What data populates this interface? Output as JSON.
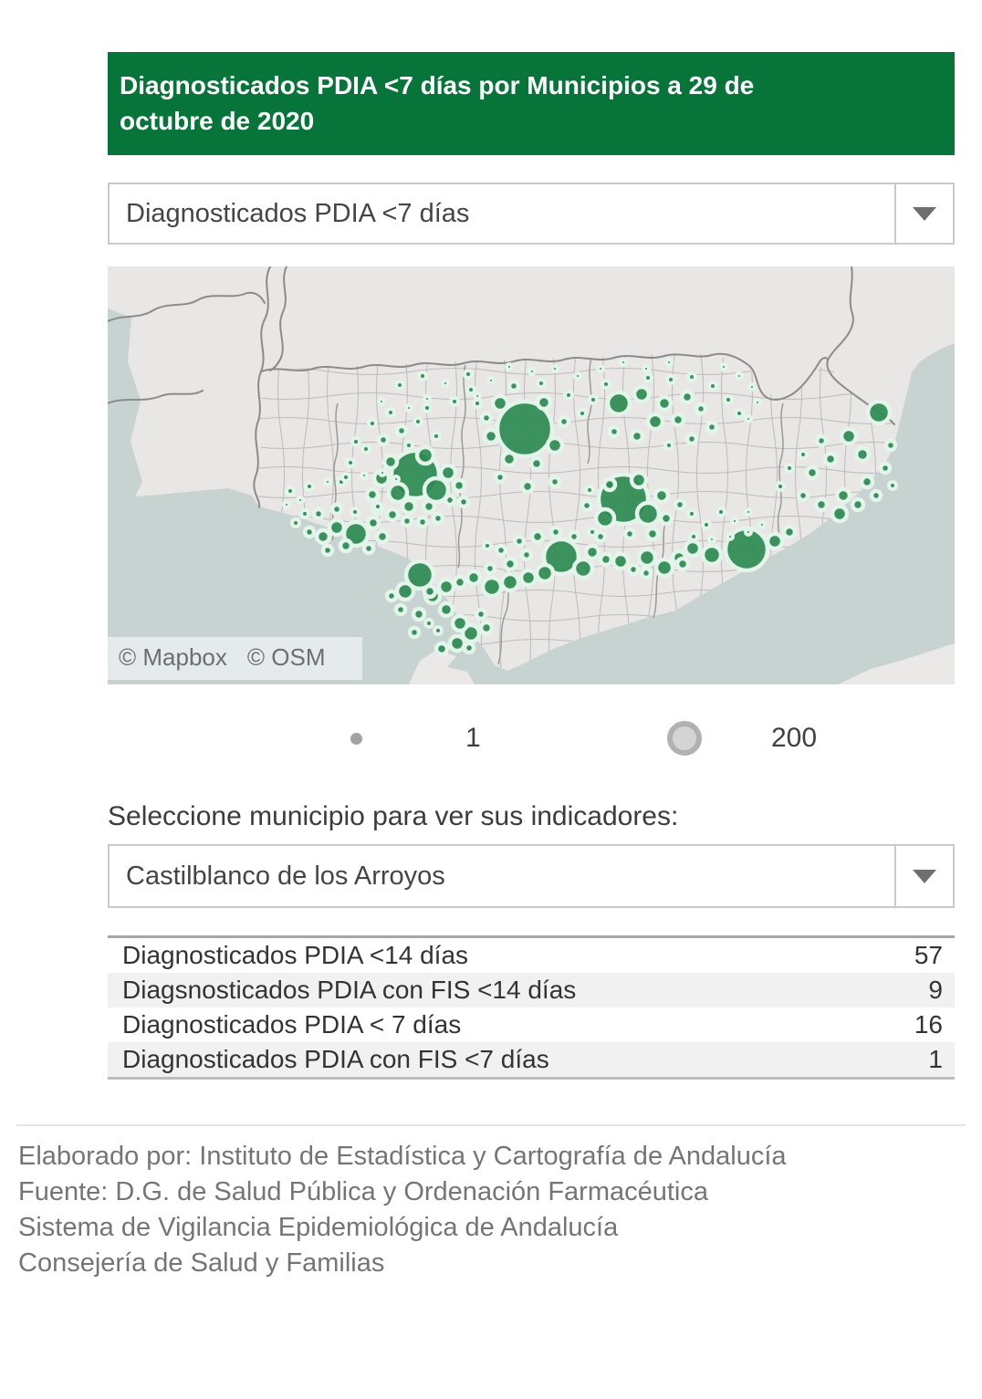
{
  "header": {
    "title": "Diagnosticados PDIA <7 días por Municipios a 29 de octubre de 2020",
    "bg_color": "#077439"
  },
  "indicator_select": {
    "value": "Diagnosticados PDIA <7 días"
  },
  "map": {
    "attribution_mapbox": "© Mapbox",
    "attribution_osm": "© OSM",
    "colors": {
      "sea": "#c6d3d1",
      "land": "#e9e7e5",
      "far_land": "#ebe9e8",
      "bubble": "#2e8b53",
      "halo": "#e3f4ea",
      "border": "#8b8b8b",
      "mesh": "#b5b4b3"
    },
    "bubbles": [
      [
        457,
        178,
        30
      ],
      [
        337,
        228,
        26
      ],
      [
        565,
        255,
        27
      ],
      [
        700,
        310,
        23
      ],
      [
        497,
        318,
        19
      ],
      [
        342,
        338,
        15
      ],
      [
        272,
        293,
        13
      ],
      [
        560,
        150,
        12
      ],
      [
        845,
        160,
        12
      ],
      [
        610,
        330,
        9
      ],
      [
        398,
        402,
        9
      ],
      [
        360,
        245,
        13
      ],
      [
        318,
        248,
        10
      ],
      [
        300,
        232,
        8
      ],
      [
        348,
        207,
        9
      ],
      [
        373,
        226,
        8
      ],
      [
        310,
        214,
        7
      ],
      [
        290,
        250,
        6
      ],
      [
        330,
        263,
        7
      ],
      [
        352,
        263,
        6
      ],
      [
        375,
        256,
        5
      ],
      [
        296,
        266,
        5
      ],
      [
        312,
        272,
        6
      ],
      [
        328,
        279,
        5
      ],
      [
        345,
        280,
        5
      ],
      [
        362,
        276,
        5
      ],
      [
        385,
        240,
        6
      ],
      [
        390,
        258,
        5
      ],
      [
        322,
        180,
        5
      ],
      [
        340,
        170,
        4
      ],
      [
        302,
        190,
        5
      ],
      [
        360,
        186,
        4
      ],
      [
        283,
        200,
        4
      ],
      [
        266,
        215,
        4
      ],
      [
        256,
        236,
        4
      ],
      [
        272,
        192,
        4
      ],
      [
        330,
        196,
        4
      ],
      [
        350,
        155,
        4
      ],
      [
        310,
        160,
        4
      ],
      [
        290,
        172,
        4
      ],
      [
        430,
        150,
        8
      ],
      [
        478,
        149,
        7
      ],
      [
        420,
        186,
        7
      ],
      [
        490,
        196,
        8
      ],
      [
        440,
        211,
        7
      ],
      [
        470,
        216,
        6
      ],
      [
        415,
        166,
        5
      ],
      [
        500,
        170,
        5
      ],
      [
        445,
        131,
        5
      ],
      [
        475,
        128,
        4
      ],
      [
        505,
        141,
        4
      ],
      [
        520,
        161,
        4
      ],
      [
        430,
        231,
        5
      ],
      [
        460,
        241,
        6
      ],
      [
        490,
        236,
        5
      ],
      [
        405,
        150,
        4
      ],
      [
        398,
        135,
        4
      ],
      [
        320,
        130,
        4
      ],
      [
        345,
        120,
        4
      ],
      [
        370,
        128,
        3
      ],
      [
        395,
        118,
        4
      ],
      [
        420,
        125,
        3
      ],
      [
        350,
        145,
        3
      ],
      [
        380,
        148,
        4
      ],
      [
        405,
        142,
        3
      ],
      [
        330,
        155,
        3
      ],
      [
        300,
        148,
        3
      ],
      [
        440,
        110,
        3
      ],
      [
        465,
        115,
        3
      ],
      [
        490,
        112,
        3
      ],
      [
        515,
        120,
        3
      ],
      [
        540,
        112,
        3
      ],
      [
        565,
        105,
        3
      ],
      [
        590,
        112,
        3
      ],
      [
        615,
        105,
        3
      ],
      [
        585,
        140,
        8
      ],
      [
        610,
        150,
        7
      ],
      [
        635,
        143,
        6
      ],
      [
        600,
        170,
        8
      ],
      [
        625,
        168,
        6
      ],
      [
        580,
        186,
        6
      ],
      [
        555,
        181,
        5
      ],
      [
        650,
        156,
        5
      ],
      [
        662,
        176,
        5
      ],
      [
        640,
        189,
        5
      ],
      [
        615,
        196,
        4
      ],
      [
        592,
        122,
        4
      ],
      [
        617,
        124,
        4
      ],
      [
        640,
        121,
        4
      ],
      [
        663,
        131,
        4
      ],
      [
        680,
        146,
        4
      ],
      [
        692,
        161,
        4
      ],
      [
        546,
        129,
        4
      ],
      [
        532,
        146,
        4
      ],
      [
        675,
        110,
        3
      ],
      [
        692,
        120,
        3
      ],
      [
        706,
        132,
        3
      ],
      [
        712,
        149,
        3
      ],
      [
        702,
        167,
        3
      ],
      [
        592,
        271,
        12
      ],
      [
        545,
        276,
        10
      ],
      [
        582,
        234,
        8
      ],
      [
        607,
        251,
        7
      ],
      [
        550,
        239,
        6
      ],
      [
        612,
        276,
        6
      ],
      [
        627,
        261,
        5
      ],
      [
        597,
        293,
        6
      ],
      [
        572,
        293,
        5
      ],
      [
        540,
        296,
        5
      ],
      [
        640,
        271,
        4
      ],
      [
        656,
        283,
        4
      ],
      [
        672,
        269,
        4
      ],
      [
        687,
        279,
        3
      ],
      [
        702,
        269,
        3
      ],
      [
        642,
        296,
        4
      ],
      [
        662,
        299,
        3
      ],
      [
        682,
        296,
        3
      ],
      [
        702,
        291,
        3
      ],
      [
        717,
        283,
        3
      ],
      [
        525,
        262,
        5
      ],
      [
        528,
        245,
        4
      ],
      [
        812,
        186,
        8
      ],
      [
        827,
        206,
        7
      ],
      [
        792,
        211,
        6
      ],
      [
        772,
        226,
        6
      ],
      [
        806,
        251,
        7
      ],
      [
        832,
        236,
        6
      ],
      [
        852,
        221,
        5
      ],
      [
        782,
        191,
        5
      ],
      [
        762,
        206,
        4
      ],
      [
        747,
        221,
        4
      ],
      [
        737,
        241,
        4
      ],
      [
        762,
        251,
        5
      ],
      [
        782,
        261,
        6
      ],
      [
        802,
        271,
        8
      ],
      [
        822,
        261,
        6
      ],
      [
        842,
        251,
        5
      ],
      [
        858,
        196,
        5
      ],
      [
        860,
        240,
        4
      ],
      [
        662,
        316,
        10
      ],
      [
        641,
        309,
        8
      ],
      [
        626,
        319,
        7
      ],
      [
        591,
        319,
        9
      ],
      [
        562,
        323,
        8
      ],
      [
        731,
        301,
        8
      ],
      [
        747,
        291,
        6
      ],
      [
        630,
        326,
        6
      ],
      [
        590,
        336,
        5
      ],
      [
        576,
        332,
        5
      ],
      [
        521,
        331,
        10
      ],
      [
        479,
        336,
        9
      ],
      [
        461,
        341,
        8
      ],
      [
        441,
        346,
        9
      ],
      [
        421,
        351,
        10
      ],
      [
        531,
        313,
        7
      ],
      [
        546,
        321,
        6
      ],
      [
        441,
        326,
        6
      ],
      [
        459,
        316,
        5
      ],
      [
        419,
        331,
        5
      ],
      [
        401,
        341,
        7
      ],
      [
        386,
        346,
        6
      ],
      [
        371,
        351,
        8
      ],
      [
        353,
        356,
        6
      ],
      [
        471,
        296,
        6
      ],
      [
        491,
        291,
        5
      ],
      [
        511,
        296,
        5
      ],
      [
        451,
        301,
        5
      ],
      [
        431,
        311,
        5
      ],
      [
        531,
        291,
        4
      ],
      [
        416,
        306,
        4
      ],
      [
        326,
        356,
        9
      ],
      [
        356,
        361,
        8
      ],
      [
        371,
        376,
        7
      ],
      [
        386,
        391,
        8
      ],
      [
        383,
        413,
        8
      ],
      [
        366,
        419,
        6
      ],
      [
        341,
        381,
        6
      ],
      [
        321,
        376,
        5
      ],
      [
        311,
        361,
        5
      ],
      [
        336,
        401,
        5
      ],
      [
        415,
        396,
        6
      ],
      [
        409,
        381,
        5
      ],
      [
        352,
        391,
        4
      ],
      [
        362,
        399,
        4
      ],
      [
        396,
        418,
        5
      ],
      [
        251,
        286,
        8
      ],
      [
        236,
        296,
        7
      ],
      [
        291,
        281,
        6
      ],
      [
        301,
        296,
        6
      ],
      [
        261,
        306,
        6
      ],
      [
        241,
        311,
        5
      ],
      [
        221,
        291,
        5
      ],
      [
        206,
        281,
        4
      ],
      [
        286,
        309,
        5
      ],
      [
        216,
        271,
        4
      ],
      [
        231,
        271,
        5
      ],
      [
        251,
        266,
        5
      ],
      [
        271,
        269,
        4
      ],
      [
        296,
        263,
        4
      ],
      [
        200,
        246,
        4
      ],
      [
        221,
        241,
        4
      ],
      [
        241,
        236,
        3
      ],
      [
        261,
        231,
        4
      ],
      [
        281,
        229,
        3
      ],
      [
        211,
        256,
        3
      ],
      [
        196,
        261,
        3
      ],
      [
        301,
        226,
        3
      ],
      [
        316,
        233,
        3
      ]
    ]
  },
  "legend": {
    "min_label": "1",
    "max_label": "200"
  },
  "municipality_section": {
    "label": "Seleccione municipio para ver sus indicadores:",
    "select_value": "Castilblanco de los Arroyos"
  },
  "indicators": {
    "rows": [
      {
        "label": "Diagnosticados PDIA <14 días",
        "value": "57"
      },
      {
        "label": "Diagsnosticados PDIA con FIS <14 días",
        "value": "9"
      },
      {
        "label": "Diagnosticados PDIA < 7 días",
        "value": "16"
      },
      {
        "label": "Diagnosticados PDIA con FIS <7 días",
        "value": "1"
      }
    ]
  },
  "footer": {
    "lines": [
      "Elaborado por: Instituto de Estadística y Cartografía de Andalucía",
      "Fuente: D.G. de Salud Pública y Ordenación Farmacéutica",
      "Sistema de Vigilancia Epidemiológica de Andalucía",
      "Consejería de Salud y Familias"
    ]
  }
}
